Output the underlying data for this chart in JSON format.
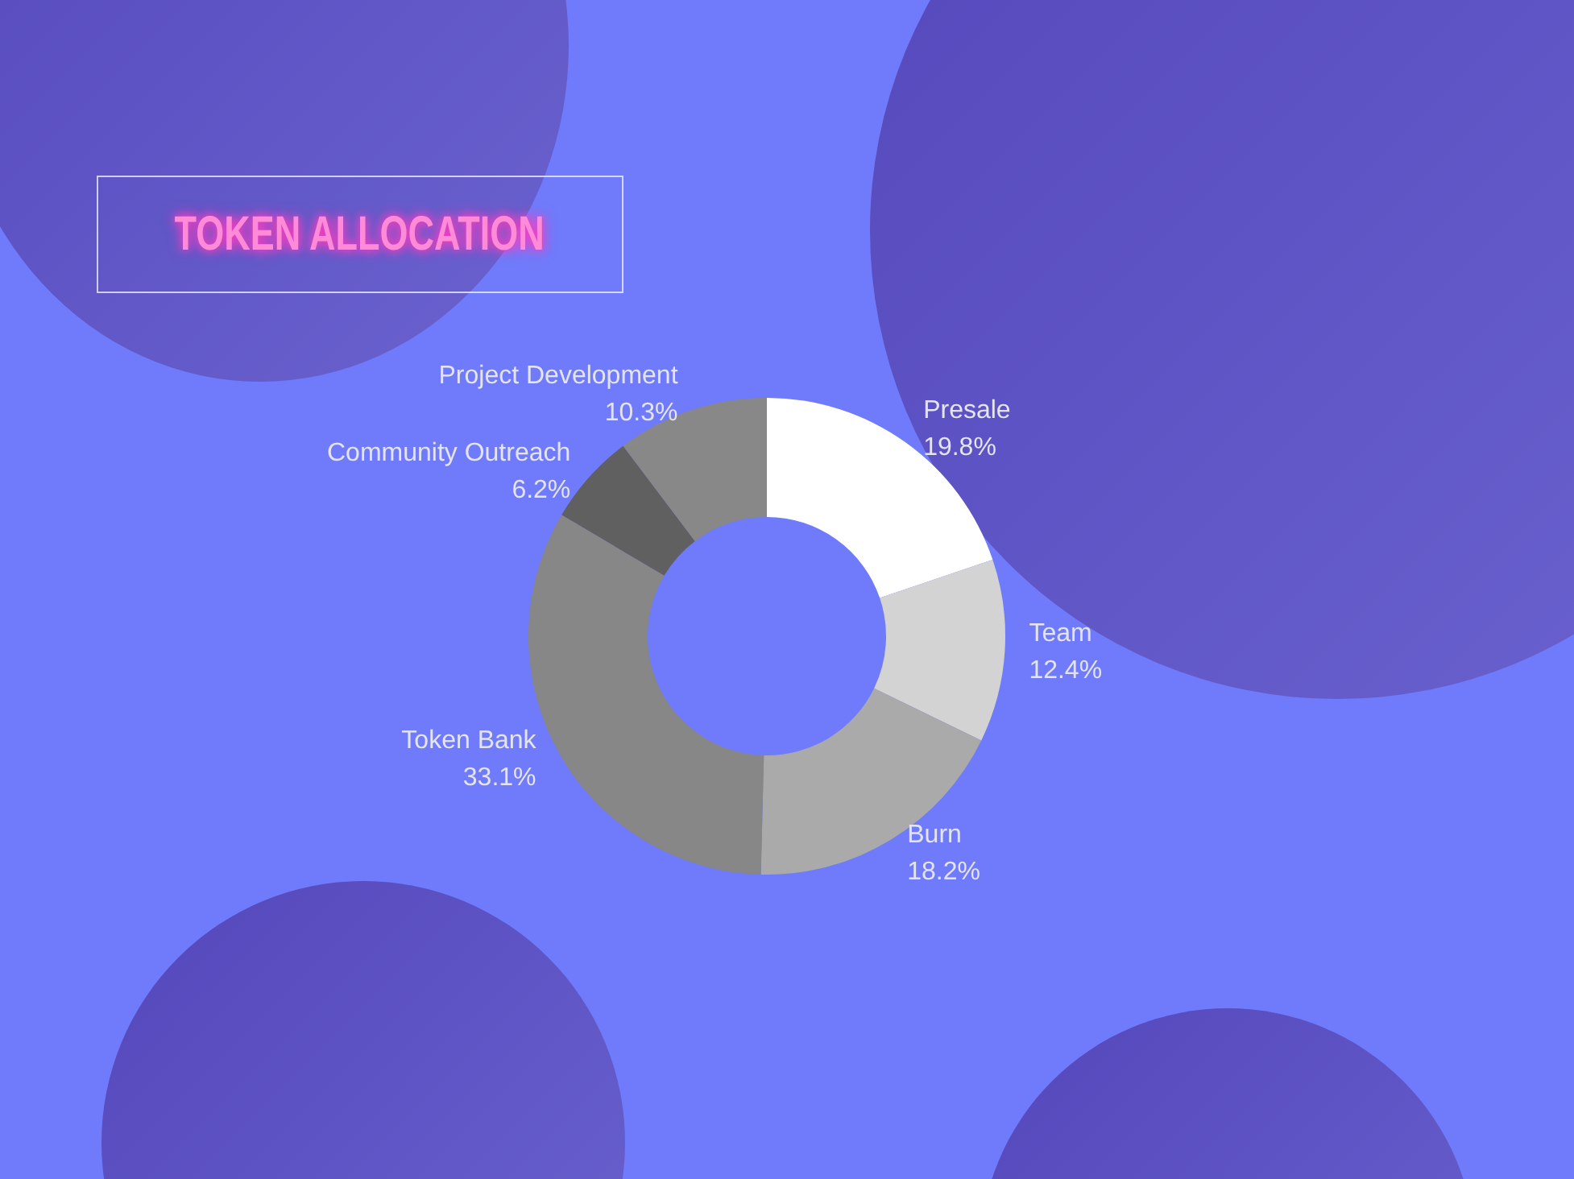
{
  "chart_data": {
    "type": "donut",
    "title": "TOKEN ALLOCATION",
    "categories": [
      "Presale",
      "Team",
      "Burn",
      "Token Bank",
      "Community Outreach",
      "Project Development"
    ],
    "values": [
      19.8,
      12.4,
      18.2,
      33.1,
      6.2,
      10.3
    ],
    "value_labels": [
      "19.8%",
      "12.4%",
      "18.2%",
      "33.1%",
      "6.2%",
      "10.3%"
    ],
    "colors": [
      "#ffffff",
      "#d3d3d3",
      "#aaaaaa",
      "#878787",
      "#606060",
      "#888888"
    ],
    "legend": false
  }
}
